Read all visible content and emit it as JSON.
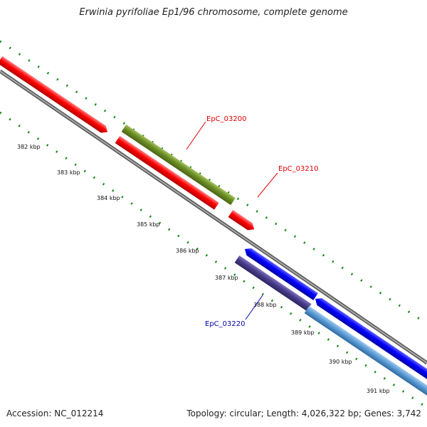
{
  "title": "Erwinia pyrifoliae Ep1/96 chromosome, complete genome",
  "footer": {
    "accession": "Accession: NC_012214",
    "stats": "Topology: circular; Length: 4,026,322 bp; Genes: 3,742"
  },
  "ticks": [
    "382 kbp",
    "383 kbp",
    "384 kbp",
    "385 kbp",
    "386 kbp",
    "387 kbp",
    "388 kbp",
    "389 kbp",
    "390 kbp",
    "391 kbp"
  ],
  "gene_labels": [
    {
      "id": "EpC_03200",
      "text": "EpC_03200",
      "color": "#dd0000"
    },
    {
      "id": "EpC_03210",
      "text": "EpC_03210",
      "color": "#dd0000"
    },
    {
      "id": "EpC_03220",
      "text": "EpC_03220",
      "color": "#0000aa"
    }
  ],
  "colors": {
    "forward_cds": "#ff0000",
    "reverse_cds": "#0000ff",
    "backbone": "#888888",
    "gene_feature_green": "#6b8e23",
    "gene_feature_purple": "#483d8b",
    "gene_feature_lightblue": "#5b9bd5",
    "tick_marks": "#118811"
  }
}
